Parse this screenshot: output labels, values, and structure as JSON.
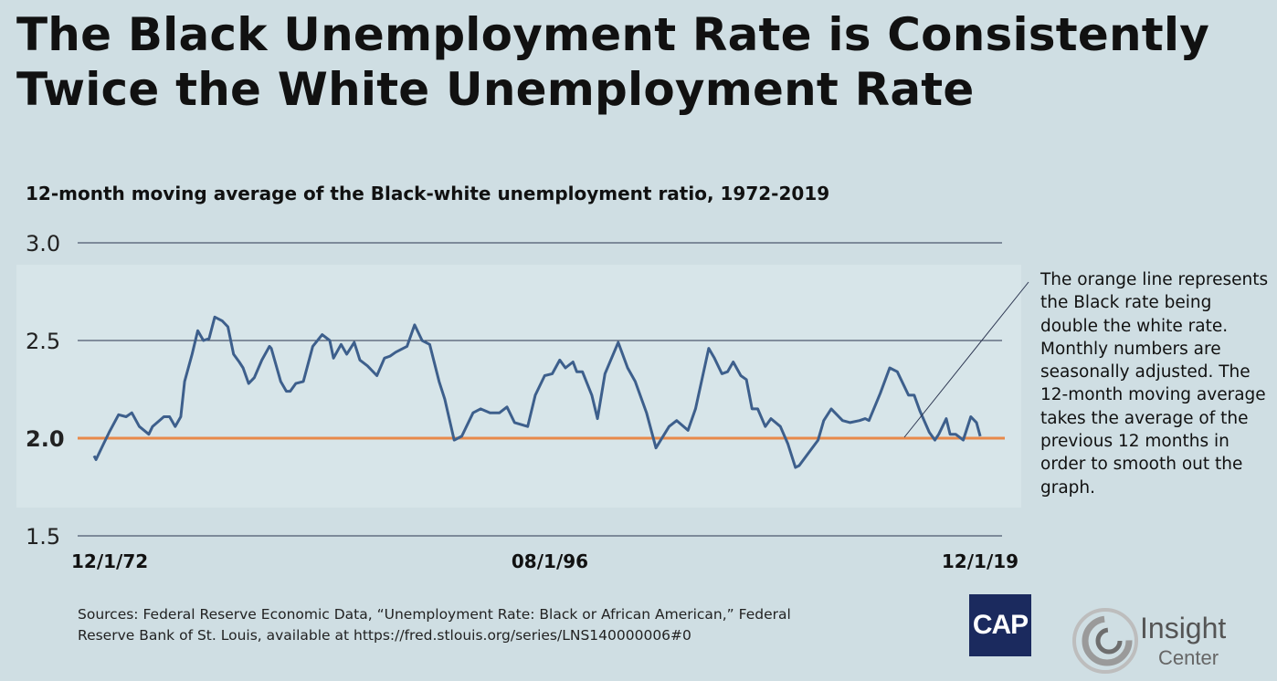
{
  "title_line1": "The Black Unemployment Rate is Consistently",
  "title_line2": "Twice the White Unemployment Rate",
  "chart_data": {
    "type": "line",
    "title": "12-month moving average of the Black-white unemployment ratio, 1972-2019",
    "xlabel": "",
    "ylabel": "",
    "ylim": [
      1.5,
      3.0
    ],
    "yticks": [
      "3.0",
      "2.5",
      "2.0",
      "1.5"
    ],
    "ytick_values": [
      3.0,
      2.5,
      2.0,
      1.5
    ],
    "xtick_labels": [
      "12/1/72",
      "08/1/96",
      "12/1/19"
    ],
    "xtick_values": [
      1972.9,
      1996.6,
      2019.9
    ],
    "grid": true,
    "reference_line": {
      "value": 2.0,
      "color": "#e8894a"
    },
    "series": [
      {
        "name": "Black-white unemployment ratio (12-month moving average)",
        "color": "#3d5f8c",
        "x": [
          1972.9,
          1973.0,
          1973.4,
          1973.7,
          1974.2,
          1974.6,
          1974.9,
          1975.3,
          1975.8,
          1976.0,
          1976.6,
          1976.9,
          1977.2,
          1977.5,
          1977.7,
          1978.1,
          1978.4,
          1978.7,
          1979.0,
          1979.3,
          1979.7,
          1980.0,
          1980.3,
          1980.6,
          1980.8,
          1981.1,
          1981.4,
          1981.8,
          1982.2,
          1982.3,
          1982.8,
          1983.1,
          1983.3,
          1983.6,
          1984.0,
          1984.5,
          1985.0,
          1985.4,
          1985.6,
          1986.0,
          1986.3,
          1986.7,
          1987.0,
          1987.4,
          1987.9,
          1988.3,
          1988.6,
          1988.9,
          1989.5,
          1989.9,
          1990.3,
          1990.7,
          1991.2,
          1991.5,
          1992.0,
          1992.4,
          1993.0,
          1993.4,
          1993.9,
          1994.4,
          1994.8,
          1995.2,
          1995.9,
          1996.3,
          1996.8,
          1997.2,
          1997.6,
          1997.9,
          1998.3,
          1998.5,
          1998.8,
          1999.3,
          1999.6,
          2000.0,
          2000.7,
          2001.2,
          2001.6,
          2002.2,
          2002.7,
          2003.4,
          2003.8,
          2004.4,
          2004.8,
          2005.5,
          2005.8,
          2006.2,
          2006.5,
          2006.8,
          2007.2,
          2007.5,
          2007.8,
          2008.1,
          2008.5,
          2008.8,
          2009.3,
          2009.7,
          2010.1,
          2010.3,
          2011.3,
          2011.6,
          2012.0,
          2012.6,
          2013.0,
          2013.5,
          2013.8,
          2014.0,
          2014.6,
          2015.1,
          2015.5,
          2016.1,
          2016.4,
          2016.7,
          2017.2,
          2017.5,
          2017.7,
          2018.1,
          2018.3,
          2018.6,
          2019.0,
          2019.4,
          2019.7,
          2019.9
        ],
        "values": [
          1.91,
          1.89,
          1.97,
          2.03,
          2.12,
          2.11,
          2.13,
          2.06,
          2.02,
          2.06,
          2.11,
          2.11,
          2.06,
          2.11,
          2.29,
          2.43,
          2.55,
          2.5,
          2.51,
          2.62,
          2.6,
          2.57,
          2.43,
          2.39,
          2.36,
          2.28,
          2.31,
          2.4,
          2.47,
          2.46,
          2.29,
          2.24,
          2.24,
          2.28,
          2.29,
          2.47,
          2.53,
          2.5,
          2.41,
          2.48,
          2.43,
          2.49,
          2.4,
          2.37,
          2.32,
          2.41,
          2.42,
          2.44,
          2.47,
          2.58,
          2.5,
          2.48,
          2.29,
          2.2,
          1.99,
          2.01,
          2.13,
          2.15,
          2.13,
          2.13,
          2.16,
          2.08,
          2.06,
          2.22,
          2.32,
          2.33,
          2.4,
          2.36,
          2.39,
          2.34,
          2.34,
          2.22,
          2.1,
          2.33,
          2.49,
          2.36,
          2.29,
          2.13,
          1.95,
          2.06,
          2.09,
          2.04,
          2.15,
          2.46,
          2.41,
          2.33,
          2.34,
          2.39,
          2.32,
          2.3,
          2.15,
          2.15,
          2.06,
          2.1,
          2.06,
          1.97,
          1.85,
          1.86,
          1.99,
          2.09,
          2.15,
          2.09,
          2.08,
          2.09,
          2.1,
          2.09,
          2.23,
          2.36,
          2.34,
          2.22,
          2.22,
          2.14,
          2.03,
          1.99,
          2.02,
          2.1,
          2.02,
          2.02,
          1.99,
          2.11,
          2.08,
          2.01
        ]
      }
    ],
    "annotation": "The orange line represents the Black rate being double the white rate. Monthly numbers are seasonally adjusted. The 12-month moving average takes the average of the previous 12 months in order to smooth out the graph."
  },
  "sources_line1": "Sources: Federal Reserve Economic Data, “Unemployment Rate: Black or African American,” Federal",
  "sources_line2": "Reserve Bank of St. Louis, available at https://fred.stlouis.org/series/LNS140000006#0",
  "logos": {
    "cap": "CAP",
    "insight_line1": "Insight",
    "insight_line2": "Center"
  },
  "colors": {
    "background": "#cfdee3",
    "line": "#3d5f8c",
    "reference": "#e8894a",
    "cap_navy": "#1b2a5e"
  }
}
